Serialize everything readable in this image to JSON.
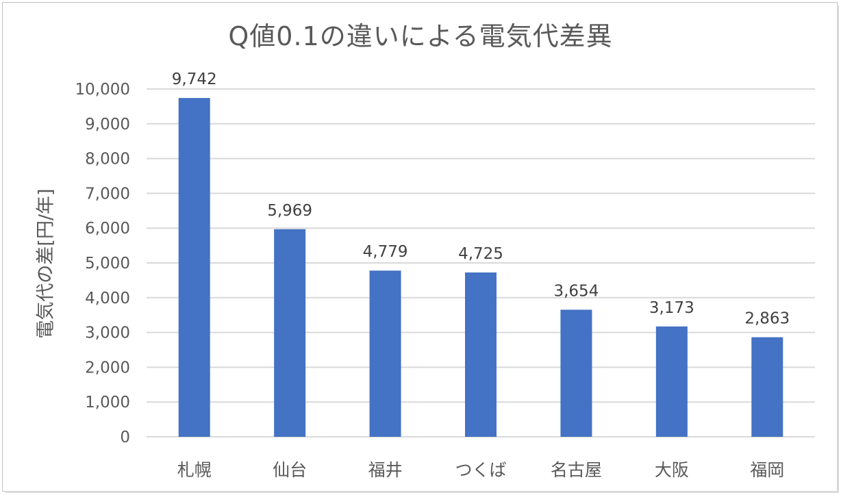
{
  "chart_data": {
    "type": "bar",
    "title": "Q値0.1の違いによる電気代差異",
    "xlabel": "",
    "ylabel": "電気代の差[円/年]",
    "categories": [
      "札幌",
      "仙台",
      "福井",
      "つくば",
      "名古屋",
      "大阪",
      "福岡"
    ],
    "values": [
      9742,
      5969,
      4779,
      4725,
      3654,
      3173,
      2863
    ],
    "data_labels": [
      "9,742",
      "5,969",
      "4,779",
      "4,725",
      "3,654",
      "3,173",
      "2,863"
    ],
    "yticks": [
      "0",
      "1,000",
      "2,000",
      "3,000",
      "4,000",
      "5,000",
      "6,000",
      "7,000",
      "8,000",
      "9,000",
      "10,000"
    ],
    "ylim": [
      0,
      10000
    ],
    "grid": true,
    "legend": "none",
    "colors": {
      "bar": "#4472C4",
      "grid": "#D9D9D9",
      "text": "#595959"
    }
  }
}
